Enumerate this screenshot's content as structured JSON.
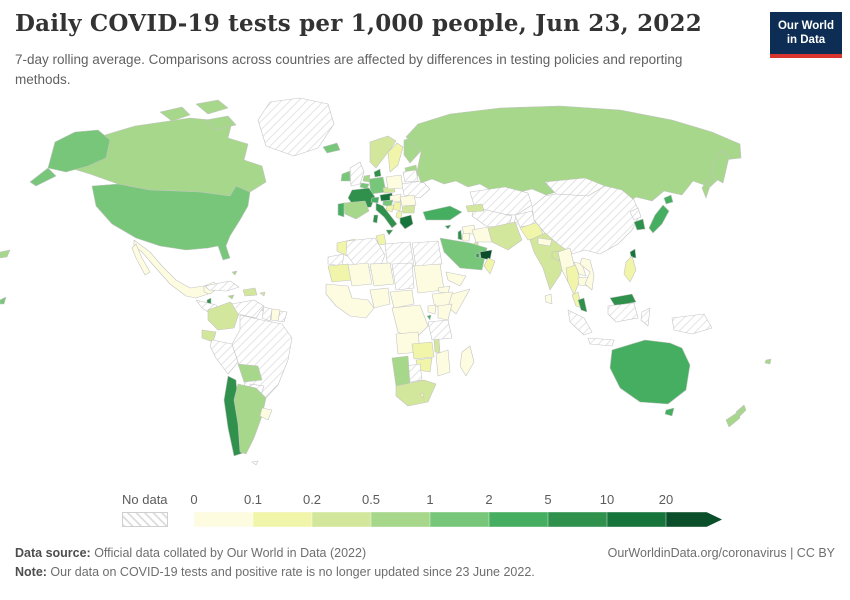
{
  "header": {
    "title": "Daily COVID-19 tests per 1,000 people, Jun 23, 2022",
    "subtitle": "7-day rolling average. Comparisons across countries are affected by differences in testing policies and reporting methods.",
    "logo": {
      "line1": "Our World",
      "line2": "in Data",
      "bg": "#0d2d54",
      "accent": "#d7352e"
    }
  },
  "legend": {
    "no_data_label": "No data",
    "ticks": [
      "0",
      "0.1",
      "0.2",
      "0.5",
      "1",
      "2",
      "5",
      "10",
      "20"
    ]
  },
  "footer": {
    "datasource_label": "Data source:",
    "datasource_text": " Official data collated by Our World in Data (2022)",
    "note_label": "Note:",
    "note_text": " Our data on COVID-19 tests and positive rate is no longer updated since 23 June 2022.",
    "right_text": "OurWorldinData.org/coronavirus | CC BY"
  },
  "chart_data": {
    "type": "choropleth",
    "title": "Daily COVID-19 tests per 1,000 people",
    "date": "Jun 23, 2022",
    "unit": "tests per 1,000 people (7-day rolling average)",
    "legend_bins": [
      {
        "label": "0-0.1",
        "color": "#fdfce1"
      },
      {
        "label": "0.1-0.2",
        "color": "#f0f5aa"
      },
      {
        "label": "0.2-0.5",
        "color": "#d3e79c"
      },
      {
        "label": "0.5-1",
        "color": "#a6d78a"
      },
      {
        "label": "1-2",
        "color": "#77c679"
      },
      {
        "label": "2-5",
        "color": "#46ae60"
      },
      {
        "label": "5-10",
        "color": "#2f914c"
      },
      {
        "label": "10-20",
        "color": "#17753b"
      },
      {
        "label": "20+",
        "color": "#0b4e2a"
      }
    ],
    "no_data_color": "hatched",
    "countries": {
      "canada": "0.5-1",
      "united-states": "1-2",
      "greenland": "no-data",
      "mexico": "0-0.1",
      "guatemala": "no-data",
      "belize": "5-10",
      "costa-rica": "5-10",
      "panama": "5-10",
      "cuba": "no-data",
      "dominican-republic": "0.2-0.5",
      "jamaica": "0.5-1",
      "puerto-rico": "0.2-0.5",
      "bahamas": "0.5-1",
      "trinidad-and-tobago": "0.5-1",
      "colombia": "0.2-0.5",
      "venezuela": "no-data",
      "guyana": "no-data",
      "suriname": "0-0.1",
      "french-guiana": "no-data",
      "ecuador": "0.2-0.5",
      "peru": "no-data",
      "brazil": "no-data",
      "bolivia": "0.5-1",
      "paraguay": "no-data",
      "chile": "5-10",
      "argentina": "0.5-1",
      "uruguay": "0-0.1",
      "falkland-islands": "no-data",
      "iceland": "1-2",
      "united-kingdom": "no-data",
      "ireland": "1-2",
      "norway": "0.2-0.5",
      "sweden": "0.1-0.2",
      "finland": "0.5-1",
      "baltic-states": "0.5-1",
      "denmark": "5-10",
      "germany": "1-2",
      "netherlands": "0.5-1",
      "belgium": "1-2",
      "france": "5-10",
      "switzerland": "2-5",
      "austria": "10-20",
      "czechia": "0.2-0.5",
      "poland": "0-0.1",
      "belarus": "no-data",
      "ukraine": "no-data",
      "hungary": "0-0.1",
      "romania": "0-0.1",
      "serbia": "0.1-0.2",
      "croatia": "1-2",
      "bosnia-and-herzegovina": "0.1-0.2",
      "albania": "0.1-0.2",
      "bulgaria": "0.2-0.5",
      "greece": "10-20",
      "italy": "5-10",
      "spain": "0.5-1",
      "portugal": "2-5",
      "russia": "0.5-1",
      "turkey": "2-5",
      "cyprus": "5-10",
      "georgia": "0.2-0.5",
      "kazakhstan": "no-data",
      "central-asia": "no-data",
      "afghanistan": "no-data",
      "pakistan": "0.1-0.2",
      "india": "0.2-0.5",
      "nepal": "0-0.1",
      "bangladesh": "0.2-0.5",
      "sri-lanka": "0-0.1",
      "china": "no-data",
      "mongolia": "no-data",
      "north-korea": "no-data",
      "south-korea": "5-10",
      "japan": "2-5",
      "taiwan": "10-20",
      "iran": "0.2-0.5",
      "iraq": "0-0.1",
      "syria": "0-0.1",
      "jordan": "0-0.1",
      "israel": "5-10",
      "saudi-arabia": "1-2",
      "yemen": "0-0.1",
      "oman": "0.1-0.2",
      "kuwait": "0.2-0.5",
      "qatar": "5-10",
      "united-arab-emirates": "20+",
      "myanmar": "0-0.1",
      "thailand": "0.1-0.2",
      "laos": "0-0.1",
      "cambodia": "0-0.1",
      "vietnam": "0-0.1",
      "malaysia": "5-10",
      "indonesia": "no-data",
      "philippines": "0.1-0.2",
      "papua-new-guinea": "no-data",
      "australia": "2-5",
      "new-zealand": "0.5-1",
      "fiji": "0.5-1",
      "morocco": "0.1-0.2",
      "western-sahara": "no-data",
      "algeria": "no-data",
      "tunisia": "0.1-0.2",
      "libya": "no-data",
      "egypt": "no-data",
      "mauritania": "0.1-0.2",
      "mali": "0-0.1",
      "niger": "0-0.1",
      "chad": "no-data",
      "sudan": "0-0.1",
      "eritrea": "0-0.1",
      "djibouti": "0.1-0.2",
      "ethiopia": "0-0.1",
      "somalia": "0-0.1",
      "senegal": "0-0.1",
      "nigeria": "0-0.1",
      "cameroon": "0-0.1",
      "democratic-republic-of-congo": "0-0.1",
      "uganda": "0-0.1",
      "kenya": "0-0.1",
      "rwanda": "2-5",
      "tanzania": "no-data",
      "angola": "0-0.1",
      "zambia": "0.1-0.2",
      "malawi": "0.2-0.5",
      "mozambique": "0-0.1",
      "zimbabwe": "0.1-0.2",
      "botswana": "no-data",
      "namibia": "0.5-1",
      "south-africa": "0.2-0.5",
      "lesotho": "0.1-0.2",
      "madagascar": "0-0.1"
    }
  }
}
